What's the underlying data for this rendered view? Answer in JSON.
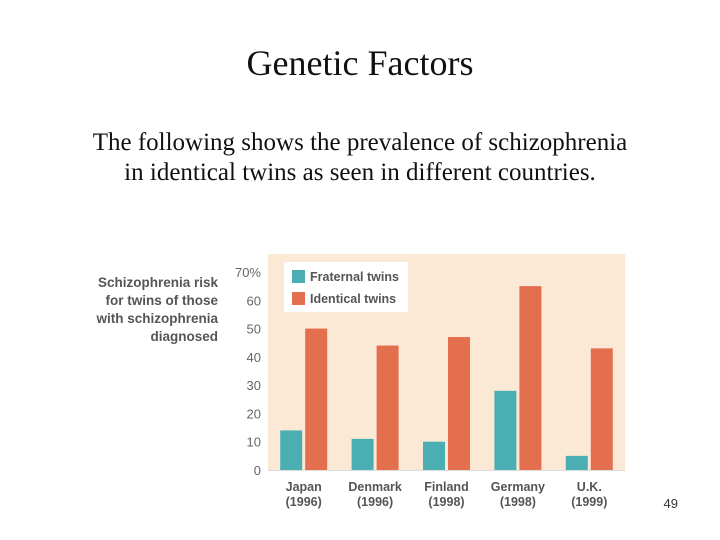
{
  "slide": {
    "title": "Genetic Factors",
    "subtitle": "The following shows the prevalence of schizophrenia in identical twins as seen in different countries.",
    "page_number": "49"
  },
  "chart_data": {
    "type": "bar",
    "title_lines": [
      "Schizophrenia risk",
      "for twins of those",
      "with schizophrenia",
      "diagnosed"
    ],
    "ylim": [
      0,
      70
    ],
    "yticks": [
      "0",
      "10",
      "20",
      "30",
      "40",
      "50",
      "60",
      "70%"
    ],
    "categories": [
      {
        "name": "Japan",
        "year": "(1996)"
      },
      {
        "name": "Denmark",
        "year": "(1996)"
      },
      {
        "name": "Finland",
        "year": "(1998)"
      },
      {
        "name": "Germany",
        "year": "(1998)"
      },
      {
        "name": "U.K.",
        "year": "(1999)"
      }
    ],
    "series": [
      {
        "name": "Fraternal twins",
        "color": "#4aaeb3",
        "values": [
          14,
          11,
          10,
          28,
          5
        ]
      },
      {
        "name": "Identical twins",
        "color": "#e46f4f",
        "values": [
          50,
          44,
          47,
          65,
          43
        ]
      }
    ],
    "legend_position": "top-left",
    "grid": false,
    "plot_background": "#fbe9d5"
  }
}
